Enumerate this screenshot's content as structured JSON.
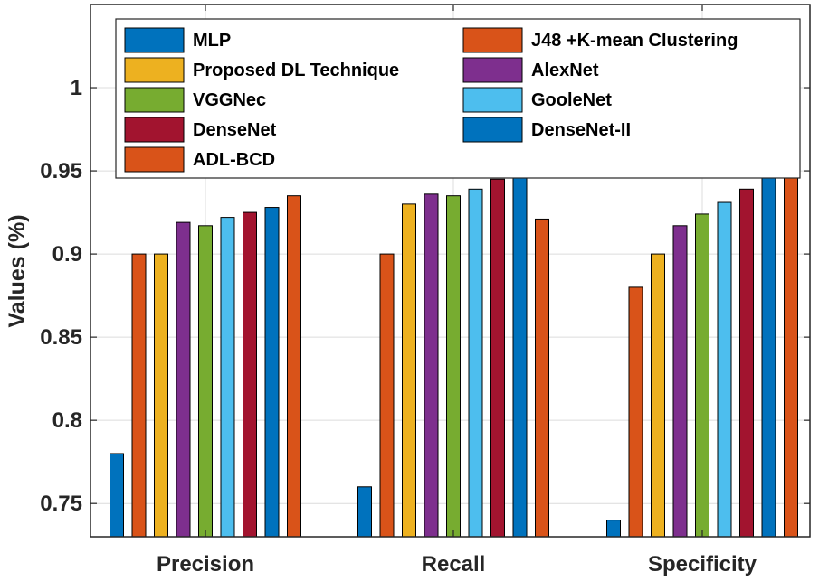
{
  "chart_data": {
    "type": "bar",
    "title": "",
    "xlabel": "",
    "ylabel": "Values (%)",
    "ylim": [
      0.73,
      1.05
    ],
    "yticks": [
      "0.75",
      "0.8",
      "0.85",
      "0.9",
      "0.95",
      "1"
    ],
    "grid": true,
    "legend_position": "top",
    "categories": [
      "Precision",
      "Recall",
      "Specificity"
    ],
    "series": [
      {
        "name": "MLP",
        "color": "#0072BD",
        "values": [
          0.78,
          0.76,
          0.74
        ]
      },
      {
        "name": "J48 +K-mean Clustering",
        "color": "#D95319",
        "values": [
          0.9,
          0.9,
          0.88
        ]
      },
      {
        "name": "Proposed DL Technique",
        "color": "#EDB120",
        "values": [
          0.9,
          0.93,
          0.9
        ]
      },
      {
        "name": "AlexNet",
        "color": "#7E2F8E",
        "values": [
          0.919,
          0.936,
          0.917
        ]
      },
      {
        "name": "VGGNec",
        "color": "#77AC30",
        "values": [
          0.917,
          0.935,
          0.924
        ]
      },
      {
        "name": "GooleNet",
        "color": "#4DBEEE",
        "values": [
          0.922,
          0.939,
          0.931
        ]
      },
      {
        "name": "DenseNet",
        "color": "#A2142F",
        "values": [
          0.925,
          0.945,
          0.939
        ]
      },
      {
        "name": "DenseNet-II",
        "color": "#0072BD",
        "values": [
          0.928,
          0.955,
          0.953
        ]
      },
      {
        "name": "ADL-BCD",
        "color": "#D95319",
        "values": [
          0.935,
          0.921,
          0.958
        ]
      }
    ]
  }
}
